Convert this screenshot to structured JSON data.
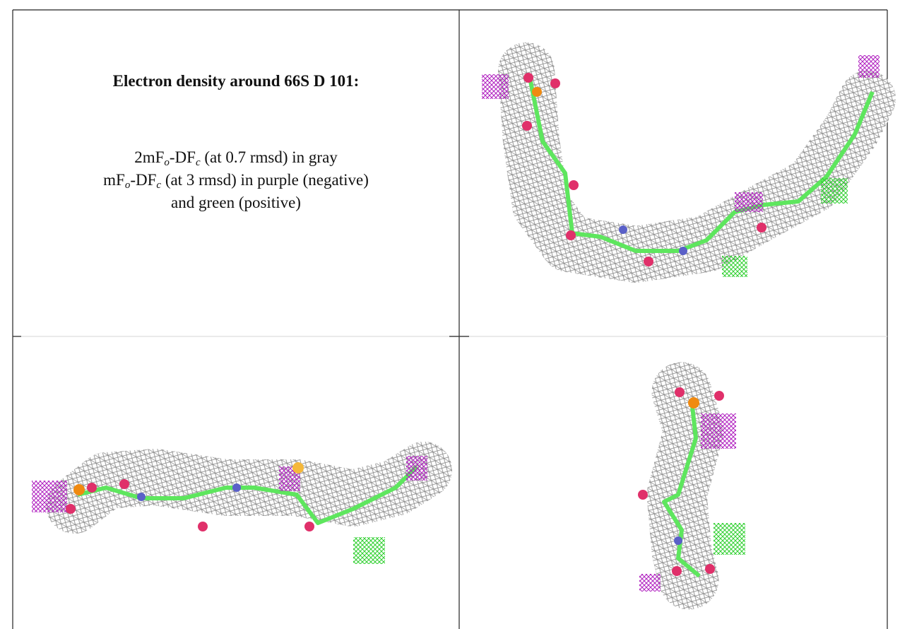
{
  "caption": {
    "title": "Electron density around 66S D 101:",
    "lines": [
      [
        "2mF",
        "o",
        "-DF",
        "c",
        " (at 0.7 rmsd) in gray"
      ],
      [
        "mF",
        "o",
        "-DF",
        "c",
        " (at 3 rmsd) in purple (negative)"
      ],
      [
        "and green (positive)"
      ]
    ]
  }
}
